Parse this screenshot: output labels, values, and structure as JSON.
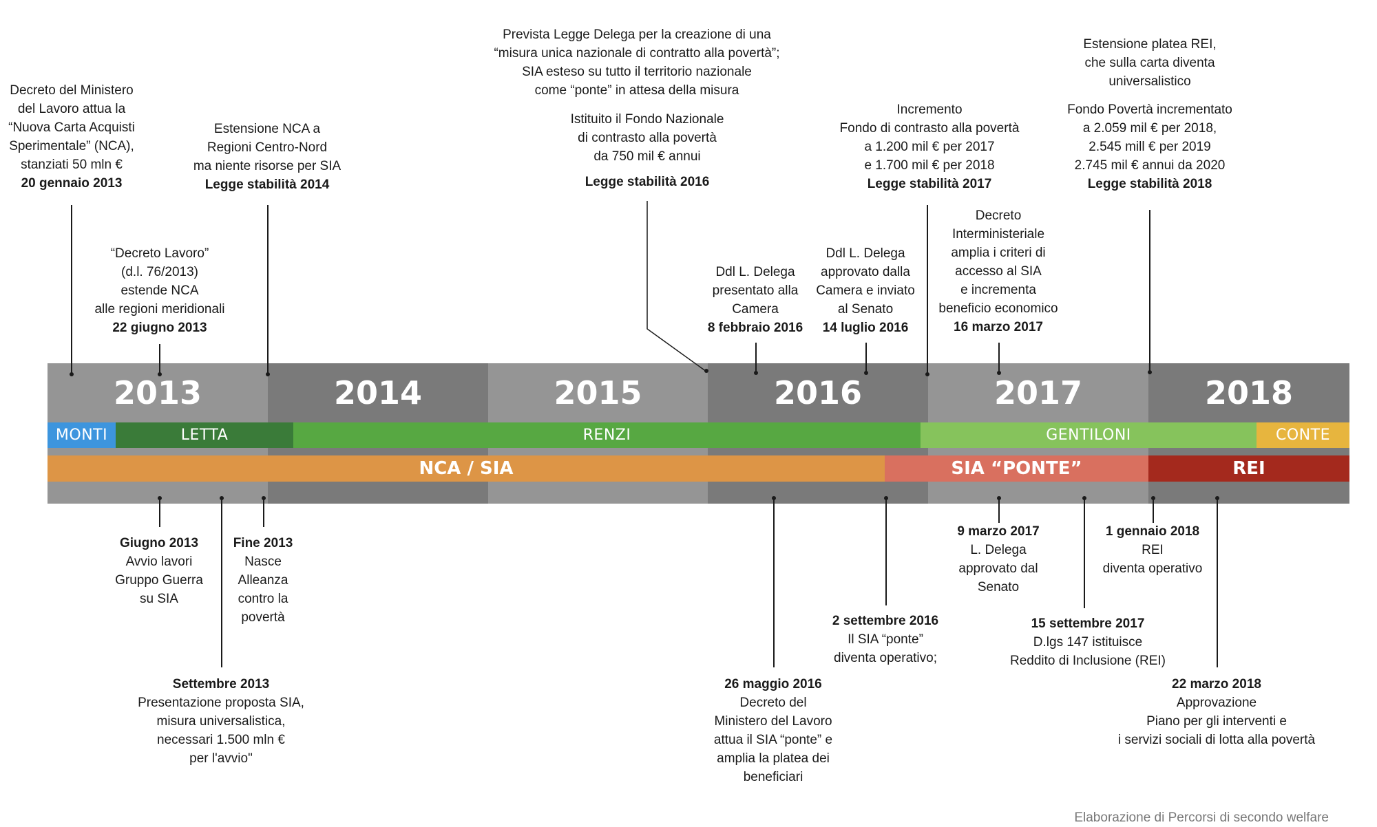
{
  "years": [
    "2013",
    "2014",
    "2015",
    "2016",
    "2017",
    "2018"
  ],
  "governments": [
    "MONTI",
    "LETTA",
    "RENZI",
    "GENTILONI",
    "CONTE"
  ],
  "measures": [
    "NCA / SIA",
    "SIA “PONTE”",
    "REI"
  ],
  "colors": {
    "year_light": "#959595",
    "year_dark": "#7a7a7a",
    "monti": "#3d95de",
    "letta": "#3a7b39",
    "renzi": "#57a842",
    "gentiloni": "#86c35c",
    "conte": "#e7b53e",
    "nca_sia": "#dd9546",
    "sia_ponte": "#d9705f",
    "rei": "#a4291d"
  },
  "events_top": [
    {
      "lines": [
        "Decreto del Ministero",
        "del Lavoro attua la",
        "“Nuova Carta Acquisti",
        "Sperimentale” (NCA),",
        "stanziati 50 mln €"
      ],
      "date": "20 gennaio 2013"
    },
    {
      "lines": [
        "“Decreto Lavoro”",
        "(d.l. 76/2013)",
        "estende NCA",
        "alle regioni meridionali"
      ],
      "date": "22 giugno 2013"
    },
    {
      "lines": [
        "Estensione NCA a",
        "Regioni Centro-Nord",
        "ma niente risorse per SIA"
      ],
      "date": "Legge stabilità 2014"
    },
    {
      "lines": [
        "Prevista Legge Delega per la creazione di una",
        "“misura unica nazionale di contratto alla povertà”;",
        "SIA esteso su tutto il territorio nazionale",
        "come “ponte” in attesa della misura"
      ]
    },
    {
      "lines": [
        "Istituito il Fondo Nazionale",
        "di contrasto alla povertà",
        "da 750 mil € annui"
      ],
      "date": "Legge stabilità 2016"
    },
    {
      "lines": [
        "Ddl L. Delega",
        "presentato alla",
        "Camera"
      ],
      "date": "8 febbraio 2016"
    },
    {
      "lines": [
        "Ddl L. Delega",
        "approvato dalla",
        "Camera e inviato",
        "al Senato"
      ],
      "date": "14 luglio 2016"
    },
    {
      "lines": [
        "Incremento",
        "Fondo di contrasto alla povertà",
        "a 1.200 mil € per 2017",
        "e 1.700 mil € per 2018"
      ],
      "date": "Legge stabilità 2017"
    },
    {
      "lines": [
        "Decreto",
        "Interministeriale",
        "amplia i criteri di",
        "accesso al SIA",
        "e incrementa",
        "beneficio economico"
      ],
      "date": "16 marzo 2017"
    },
    {
      "lines": [
        "Estensione platea REI,",
        "che sulla carta diventa",
        "universalistico"
      ]
    },
    {
      "lines": [
        "Fondo Povertà incrementato",
        "a 2.059 mil €  per 2018,",
        "2.545 mill € per 2019",
        "2.745 mil € annui da 2020"
      ],
      "date": "Legge stabilità 2018"
    }
  ],
  "events_bottom": [
    {
      "date": "Giugno 2013",
      "lines": [
        "Avvio lavori",
        "Gruppo Guerra",
        "su SIA"
      ]
    },
    {
      "date": "Fine 2013",
      "lines": [
        "Nasce",
        "Alleanza",
        "contro la",
        "povertà"
      ]
    },
    {
      "date": "Settembre 2013",
      "lines": [
        "Presentazione proposta SIA,",
        "misura universalistica,",
        "necessari 1.500 mln €",
        "per l'avvio\""
      ]
    },
    {
      "date": "26 maggio 2016",
      "lines": [
        "Decreto del",
        "Ministero del Lavoro",
        "attua il SIA “ponte” e",
        "amplia la platea dei",
        "beneficiari"
      ]
    },
    {
      "date": "2 settembre 2016",
      "lines": [
        "Il SIA “ponte”",
        "diventa operativo;"
      ]
    },
    {
      "date": "9 marzo 2017",
      "lines": [
        "L. Delega",
        "approvato dal",
        "Senato"
      ]
    },
    {
      "date": "15 settembre 2017",
      "lines": [
        "D.lgs 147 istituisce",
        "Reddito di Inclusione (REI)"
      ]
    },
    {
      "date": "1 gennaio 2018",
      "lines": [
        "REI",
        "diventa operativo"
      ]
    },
    {
      "date": "22 marzo 2018",
      "lines": [
        "Approvazione",
        "Piano per gli interventi e",
        "i servizi sociali di lotta alla povertà"
      ]
    }
  ],
  "credit": "Elaborazione di Percorsi di secondo welfare"
}
